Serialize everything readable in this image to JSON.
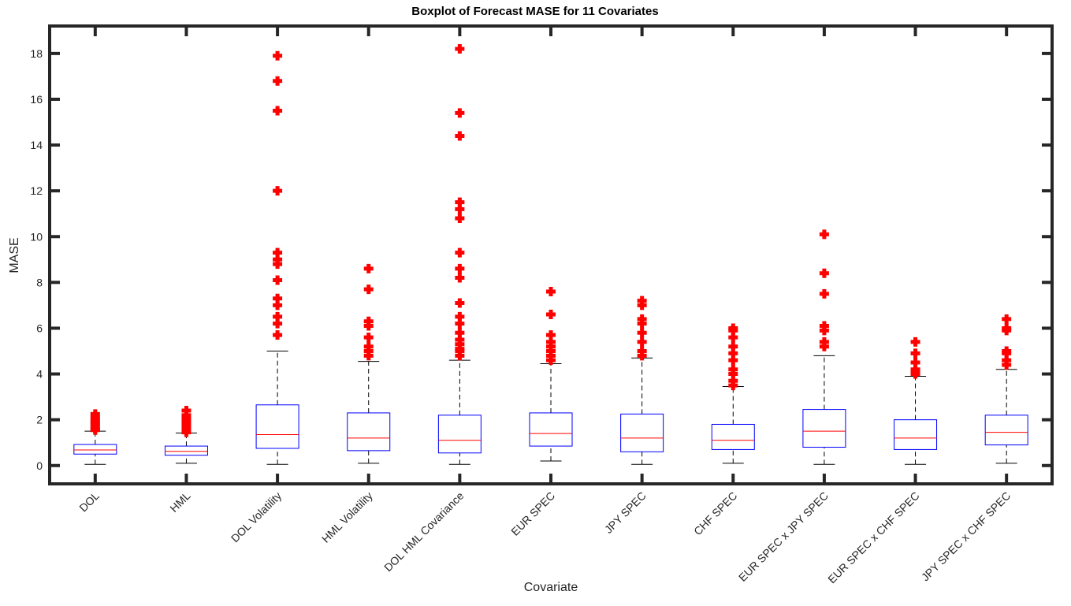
{
  "chart_data": {
    "type": "boxplot",
    "title": "Boxplot of Forecast MASE for 11 Covariates",
    "xlabel": "Covariate",
    "ylabel": "MASE",
    "ylim": [
      -0.8,
      19.2
    ],
    "yticks": [
      0,
      2,
      4,
      6,
      8,
      10,
      12,
      14,
      16,
      18
    ],
    "grid": false,
    "colors": {
      "box": "#0000ff",
      "median": "#ff0000",
      "whisker": "#000000",
      "outlier": "#ff0000",
      "frame": "#262626"
    },
    "categories": [
      "DOL",
      "HML",
      "DOL Volatility",
      "HML Volatility",
      "DOL HML Covariance",
      "EUR SPEC",
      "JPY SPEC",
      "CHF SPEC",
      "EUR SPEC x JPY SPEC",
      "EUR SPEC x CHF SPEC",
      "JPY SPEC x CHF SPEC"
    ],
    "boxes": [
      {
        "min": 0.05,
        "q1": 0.5,
        "median": 0.68,
        "q3": 0.92,
        "max": 1.5,
        "outliers": [
          1.55,
          1.6,
          1.7,
          1.8,
          1.9,
          2.0,
          2.1,
          2.25
        ]
      },
      {
        "min": 0.1,
        "q1": 0.45,
        "median": 0.62,
        "q3": 0.85,
        "max": 1.42,
        "outliers": [
          1.45,
          1.55,
          1.65,
          1.75,
          1.85,
          1.95,
          2.05,
          2.2,
          2.4
        ]
      },
      {
        "min": 0.05,
        "q1": 0.75,
        "median": 1.35,
        "q3": 2.65,
        "max": 5.0,
        "outliers": [
          5.7,
          6.2,
          6.5,
          7.0,
          7.3,
          8.1,
          8.8,
          9.0,
          9.3,
          12.0,
          15.5,
          16.8,
          17.9
        ]
      },
      {
        "min": 0.1,
        "q1": 0.65,
        "median": 1.2,
        "q3": 2.3,
        "max": 4.55,
        "outliers": [
          4.8,
          5.0,
          5.2,
          5.6,
          6.1,
          6.3,
          7.7,
          8.6
        ]
      },
      {
        "min": 0.05,
        "q1": 0.55,
        "median": 1.1,
        "q3": 2.2,
        "max": 4.6,
        "outliers": [
          4.8,
          5.0,
          5.1,
          5.3,
          5.5,
          5.8,
          6.2,
          6.5,
          7.1,
          8.2,
          8.6,
          9.3,
          10.8,
          11.2,
          11.5,
          14.4,
          15.4,
          18.2
        ]
      },
      {
        "min": 0.2,
        "q1": 0.85,
        "median": 1.4,
        "q3": 2.3,
        "max": 4.45,
        "outliers": [
          4.6,
          4.8,
          5.0,
          5.2,
          5.4,
          5.7,
          6.6,
          7.6
        ]
      },
      {
        "min": 0.05,
        "q1": 0.6,
        "median": 1.2,
        "q3": 2.25,
        "max": 4.7,
        "outliers": [
          4.8,
          5.0,
          5.4,
          5.8,
          6.2,
          6.4,
          7.0,
          7.2
        ]
      },
      {
        "min": 0.1,
        "q1": 0.7,
        "median": 1.1,
        "q3": 1.8,
        "max": 3.45,
        "outliers": [
          3.5,
          3.7,
          4.0,
          4.2,
          4.6,
          4.9,
          5.2,
          5.6,
          5.9,
          6.0
        ]
      },
      {
        "min": 0.05,
        "q1": 0.8,
        "median": 1.5,
        "q3": 2.45,
        "max": 4.8,
        "outliers": [
          5.2,
          5.4,
          5.9,
          6.1,
          7.5,
          8.4,
          10.1
        ]
      },
      {
        "min": 0.05,
        "q1": 0.7,
        "median": 1.2,
        "q3": 2.0,
        "max": 3.9,
        "outliers": [
          4.0,
          4.1,
          4.2,
          4.5,
          4.9,
          5.4
        ]
      },
      {
        "min": 0.1,
        "q1": 0.9,
        "median": 1.45,
        "q3": 2.2,
        "max": 4.2,
        "outliers": [
          4.4,
          4.6,
          4.9,
          5.0,
          5.9,
          6.0,
          6.4
        ]
      }
    ]
  }
}
